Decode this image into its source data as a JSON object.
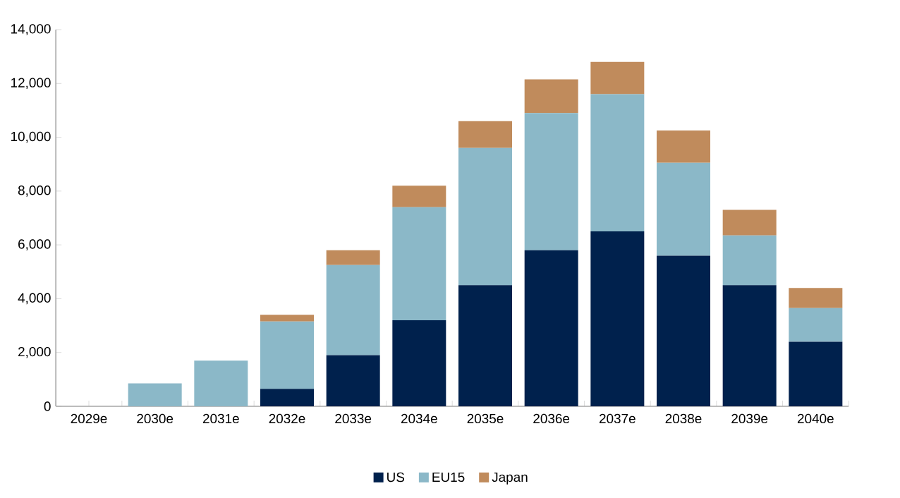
{
  "chart_data": {
    "type": "bar",
    "stacked": true,
    "categories": [
      "2029e",
      "2030e",
      "2031e",
      "2032e",
      "2033e",
      "2034e",
      "2035e",
      "2036e",
      "2037e",
      "2038e",
      "2039e",
      "2040e"
    ],
    "series": [
      {
        "name": "US",
        "color": "#00214d",
        "values": [
          0,
          0,
          0,
          650,
          1900,
          3200,
          4500,
          5800,
          6500,
          5600,
          4500,
          2400
        ]
      },
      {
        "name": "EU15",
        "color": "#8bb8c8",
        "values": [
          0,
          850,
          1700,
          2500,
          3350,
          4200,
          5100,
          5100,
          5100,
          3450,
          1850,
          1250
        ]
      },
      {
        "name": "Japan",
        "color": "#c08b5c",
        "values": [
          0,
          0,
          0,
          250,
          550,
          800,
          1000,
          1250,
          1200,
          1200,
          950,
          750
        ]
      }
    ],
    "ylim": [
      0,
      14000
    ],
    "yticks": [
      {
        "value": 0,
        "label": "0"
      },
      {
        "value": 2000,
        "label": "2,000"
      },
      {
        "value": 4000,
        "label": "4,000"
      },
      {
        "value": 6000,
        "label": "6,000"
      },
      {
        "value": 8000,
        "label": "8,000"
      },
      {
        "value": 10000,
        "label": "10,000"
      },
      {
        "value": 12000,
        "label": "12,000"
      },
      {
        "value": 14000,
        "label": "14,000"
      }
    ],
    "grid": false,
    "legend": "bottom"
  }
}
